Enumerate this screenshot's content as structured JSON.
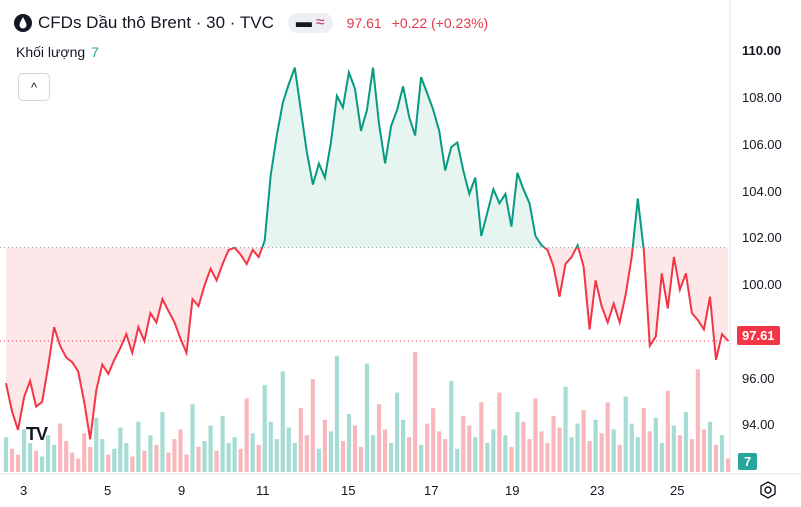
{
  "header": {
    "symbol": "CFDs Dầu thô Brent · 30 · TVC",
    "pill_wave": "≈",
    "last_price": "97.61",
    "change": "+0.22 (+0.23%)"
  },
  "volume": {
    "label": "Khối lượng",
    "value": "7"
  },
  "chart_data": {
    "type": "area",
    "baseline": 101.6,
    "last_price": 97.61,
    "ylim": [
      92.0,
      111.0
    ],
    "y_ticks": [
      "110.00",
      "108.00",
      "106.00",
      "104.00",
      "102.00",
      "100.00",
      "98.00",
      "96.00",
      "94.00"
    ],
    "x_ticks": [
      "3",
      "5",
      "9",
      "11",
      "15",
      "17",
      "19",
      "23",
      "25"
    ],
    "x": [
      0,
      1,
      2,
      3,
      4,
      5,
      6,
      7,
      8,
      9,
      10,
      11,
      12,
      13,
      14,
      15,
      16,
      17,
      18,
      19,
      20,
      21,
      22,
      23,
      24,
      25,
      26,
      27,
      28,
      29,
      30,
      31,
      32,
      33,
      34,
      35,
      36,
      37,
      38,
      39,
      40,
      41,
      42,
      43,
      44,
      45,
      46,
      47,
      48,
      49,
      50,
      51,
      52,
      53,
      54,
      55,
      56,
      57,
      58,
      59,
      60,
      61,
      62,
      63,
      64,
      65,
      66,
      67,
      68,
      69,
      70,
      71,
      72,
      73,
      74,
      75,
      76,
      77,
      78,
      79,
      80,
      81,
      82,
      83,
      84,
      85,
      86,
      87,
      88,
      89,
      90,
      91,
      92,
      93,
      94,
      95,
      96,
      97,
      98,
      99,
      100,
      101,
      102,
      103,
      104,
      105,
      106,
      107,
      108,
      109,
      110,
      111,
      112,
      113,
      114,
      115,
      116,
      117,
      118,
      119,
      120
    ],
    "values": [
      95.8,
      94.6,
      93.8,
      95.2,
      95.9,
      94.8,
      95.0,
      96.5,
      98.2,
      97.4,
      96.9,
      96.7,
      96.3,
      95.0,
      93.4,
      95.5,
      96.6,
      96.2,
      96.8,
      97.3,
      97.9,
      97.1,
      98.2,
      97.6,
      98.8,
      98.4,
      99.4,
      98.9,
      98.4,
      97.7,
      97.1,
      99.4,
      99.1,
      100.0,
      100.7,
      100.2,
      100.9,
      101.5,
      101.6,
      101.3,
      100.9,
      101.5,
      101.2,
      101.9,
      104.7,
      106.4,
      107.8,
      108.6,
      109.3,
      107.5,
      105.7,
      104.3,
      105.2,
      104.6,
      106.1,
      108.1,
      107.6,
      109.1,
      108.4,
      106.6,
      107.5,
      109.3,
      106.9,
      105.2,
      106.8,
      107.5,
      108.5,
      107.2,
      106.4,
      108.9,
      108.2,
      107.5,
      106.6,
      104.9,
      105.9,
      106.1,
      104.9,
      103.9,
      104.6,
      102.1,
      103.1,
      104.1,
      103.5,
      103.9,
      102.5,
      104.8,
      104.1,
      103.5,
      102.1,
      101.7,
      101.5,
      100.8,
      99.5,
      100.9,
      101.2,
      101.7,
      100.8,
      98.1,
      100.2,
      99.1,
      98.4,
      99.2,
      98.4,
      99.6,
      101.2,
      103.7,
      101.5,
      97.4,
      97.8,
      100.5,
      99.0,
      101.2,
      99.8,
      100.5,
      98.8,
      98.5,
      98.1,
      99.5,
      96.8,
      97.9,
      97.61
    ],
    "volumes": [
      18,
      12,
      9,
      22,
      15,
      11,
      8,
      19,
      14,
      25,
      16,
      10,
      7,
      20,
      13,
      28,
      17,
      9,
      12,
      23,
      15,
      8,
      26,
      11,
      19,
      14,
      31,
      10,
      17,
      22,
      9,
      35,
      13,
      16,
      24,
      11,
      29,
      15,
      18,
      12,
      38,
      20,
      14,
      45,
      26,
      17,
      52,
      23,
      15,
      33,
      19,
      48,
      12,
      27,
      21,
      60,
      16,
      30,
      24,
      13,
      56,
      19,
      35,
      22,
      15,
      41,
      27,
      18,
      62,
      14,
      25,
      33,
      21,
      17,
      47,
      12,
      29,
      24,
      18,
      36,
      15,
      22,
      41,
      19,
      13,
      31,
      26,
      17,
      38,
      21,
      15,
      29,
      23,
      44,
      18,
      25,
      32,
      16,
      27,
      20,
      36,
      22,
      14,
      39,
      25,
      18,
      33,
      21,
      28,
      15,
      42,
      24,
      19,
      31,
      17,
      53,
      22,
      26,
      14,
      19,
      7
    ]
  },
  "colors": {
    "up": "#089981",
    "down": "#f23645",
    "up_fill": "#e7f5f1",
    "down_fill": "#fde7e9",
    "vol_up": "#a6dcd3",
    "vol_down": "#f7b7bd"
  }
}
